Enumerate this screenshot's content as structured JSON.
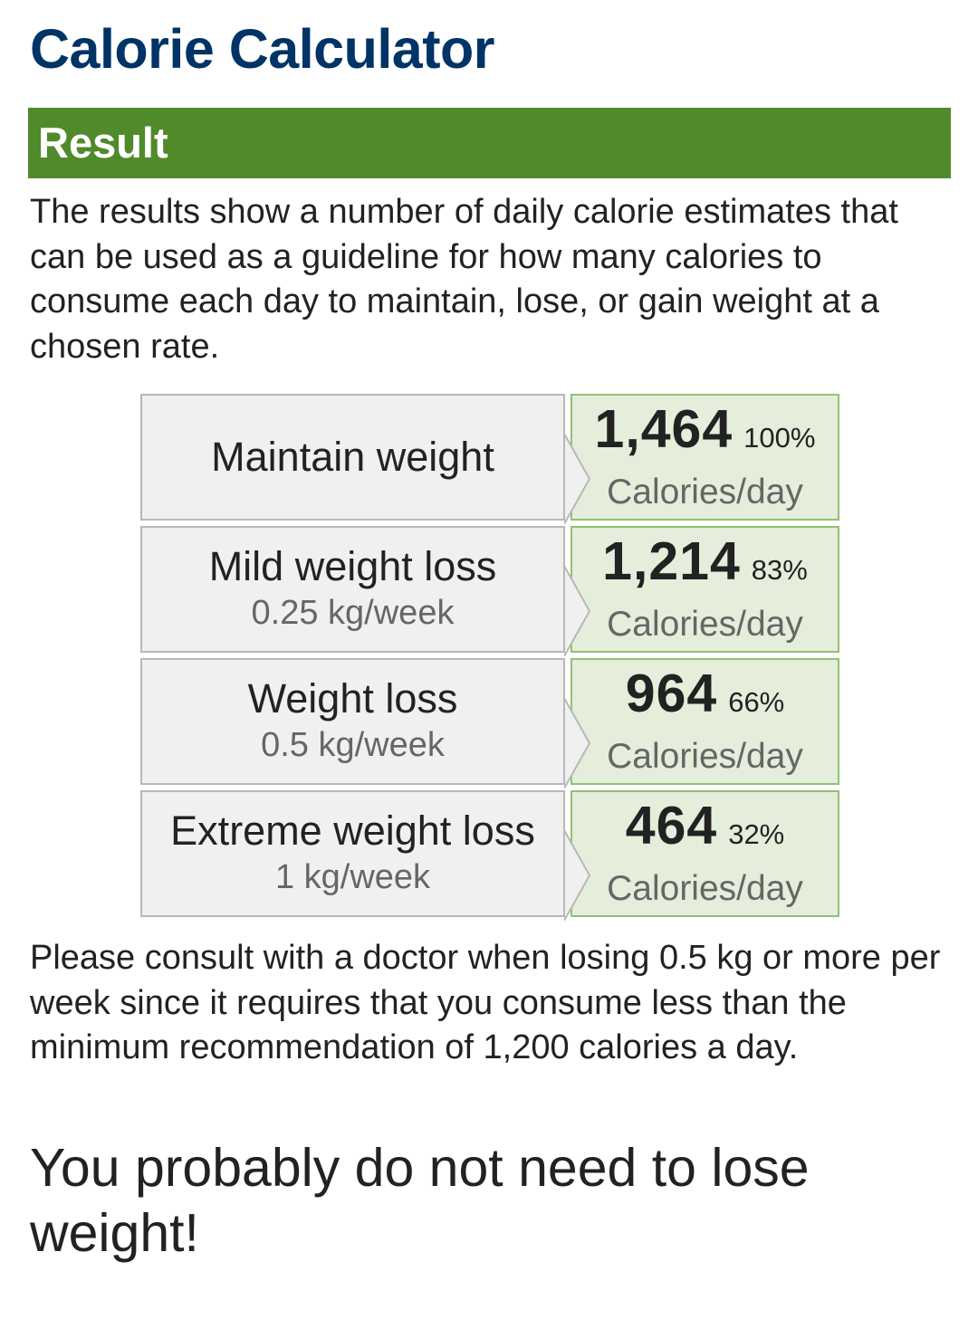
{
  "page": {
    "title": "Calorie Calculator"
  },
  "result_section": {
    "header": "Result",
    "intro": "The results show a number of daily calorie estimates that can be used as a guideline for how many calories to consume each day to maintain, lose, or gain weight at a chosen rate."
  },
  "results": [
    {
      "goal": "Maintain weight",
      "rate": "",
      "calories": "1,464",
      "percent": "100%",
      "unit": "Calories/day"
    },
    {
      "goal": "Mild weight loss",
      "rate": "0.25 kg/week",
      "calories": "1,214",
      "percent": "83%",
      "unit": "Calories/day"
    },
    {
      "goal": "Weight loss",
      "rate": "0.5 kg/week",
      "calories": "964",
      "percent": "66%",
      "unit": "Calories/day"
    },
    {
      "goal": "Extreme weight loss",
      "rate": "1 kg/week",
      "calories": "464",
      "percent": "32%",
      "unit": "Calories/day"
    }
  ],
  "notes": {
    "warning": "Please consult with a doctor when losing 0.5 kg or more per week since it requires that you consume less than the minimum recommendation of 1,200 calories a day.",
    "conclusion": "You probably do not need to lose weight!"
  },
  "colors": {
    "title": "#003366",
    "header_bg": "#518a2a",
    "goal_bg": "#f0f0f0",
    "calorie_bg": "#e5eedb",
    "calorie_border": "#91c072"
  }
}
